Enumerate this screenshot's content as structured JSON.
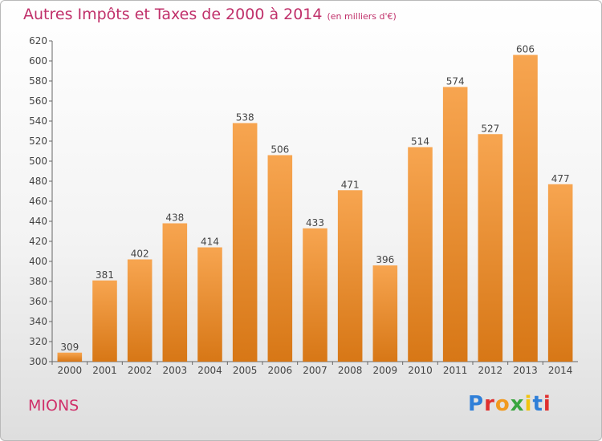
{
  "title": "Autres Impôts et Taxes de 2000 à 2014",
  "title_unit": "(en milliers d'€)",
  "town": "MIONS",
  "logo": {
    "text": "Proxiti",
    "letter_colors": [
      "#2f7fd8",
      "#e0302f",
      "#f19a1f",
      "#3aa63f",
      "#f1c40f",
      "#2f7fd8",
      "#e0302f"
    ]
  },
  "colors": {
    "bar_top": "#f7a550",
    "bar_bottom": "#d77716",
    "axis_text": "#444444",
    "title": "#c0306a"
  },
  "chart_data": {
    "type": "bar",
    "title": "Autres Impôts et Taxes de 2000 à 2014",
    "xlabel": "",
    "ylabel": "",
    "categories": [
      "2000",
      "2001",
      "2002",
      "2003",
      "2004",
      "2005",
      "2006",
      "2007",
      "2008",
      "2009",
      "2010",
      "2011",
      "2012",
      "2013",
      "2014"
    ],
    "values": [
      309,
      381,
      402,
      438,
      414,
      538,
      506,
      433,
      471,
      396,
      514,
      574,
      527,
      606,
      477
    ],
    "ylim": [
      300,
      620
    ],
    "yticks": [
      300,
      320,
      340,
      360,
      380,
      400,
      420,
      440,
      460,
      480,
      500,
      520,
      540,
      560,
      580,
      600,
      620
    ],
    "grid": false,
    "legend": "none"
  }
}
